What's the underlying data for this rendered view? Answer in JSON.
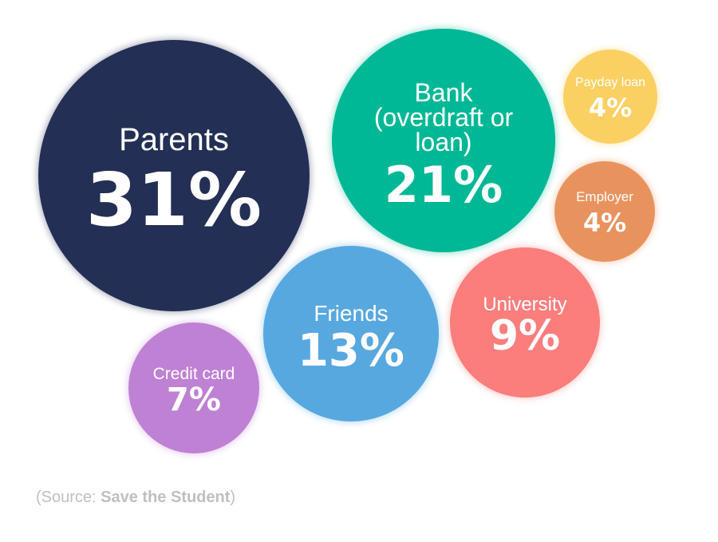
{
  "chart_data": {
    "type": "bubble",
    "items": [
      {
        "label": [
          "Parents"
        ],
        "value": 31,
        "value_text": "31%",
        "color": "#232f54"
      },
      {
        "label": [
          "Bank",
          "(overdraft or",
          "loan)"
        ],
        "value": 21,
        "value_text": "21%",
        "color": "#00b895"
      },
      {
        "label": [
          "Payday loan"
        ],
        "value": 4,
        "value_text": "4%",
        "color": "#fbd062"
      },
      {
        "label": [
          "Employer"
        ],
        "value": 4,
        "value_text": "4%",
        "color": "#e8935e"
      },
      {
        "label": [
          "Friends"
        ],
        "value": 13,
        "value_text": "13%",
        "color": "#58a8e0"
      },
      {
        "label": [
          "University"
        ],
        "value": 9,
        "value_text": "9%",
        "color": "#fb7e7d"
      },
      {
        "label": [
          "Credit card"
        ],
        "value": 7,
        "value_text": "7%",
        "color": "#bf81d4"
      }
    ]
  },
  "source": {
    "open": "(Source: ",
    "name": "Save the Student",
    "close": ")"
  }
}
